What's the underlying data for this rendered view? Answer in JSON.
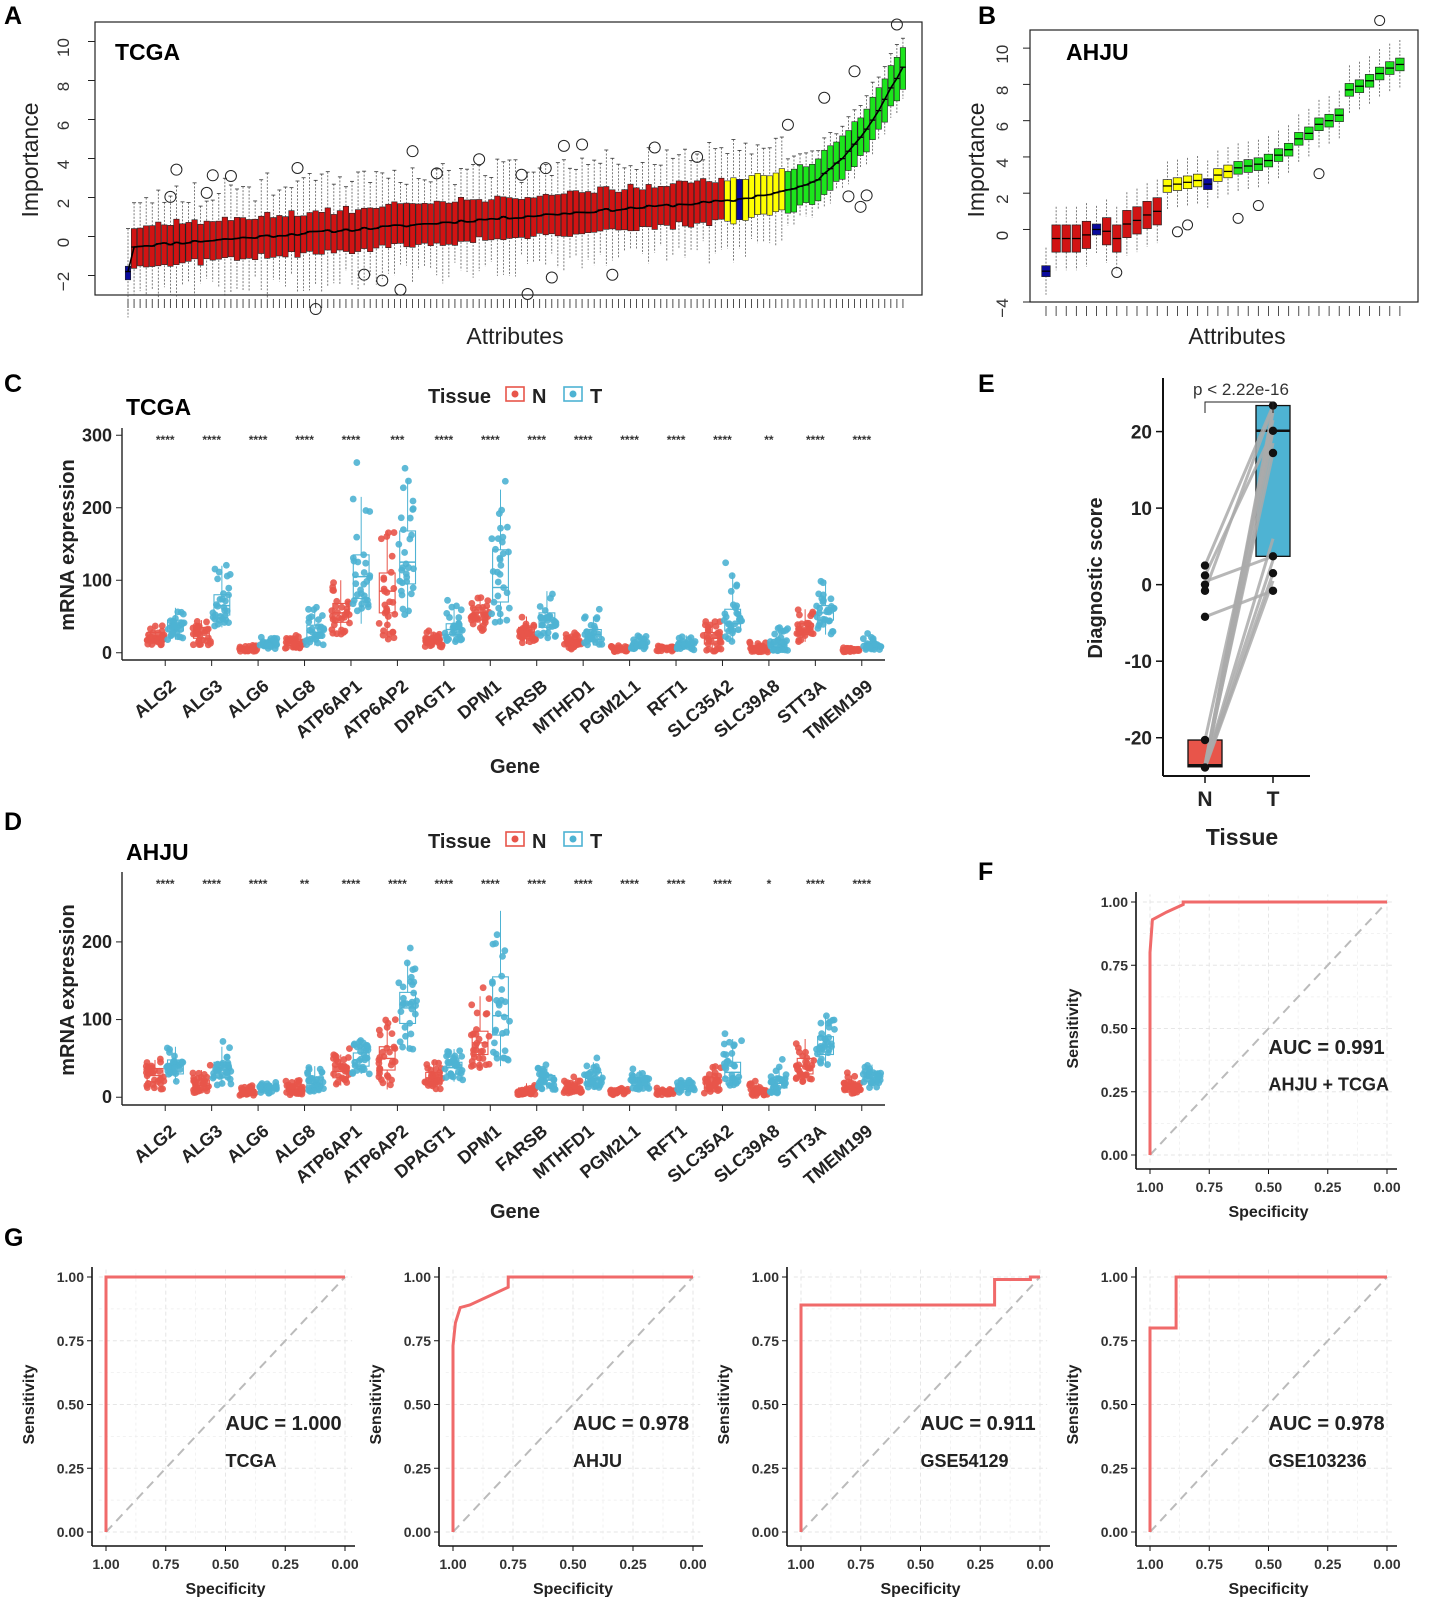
{
  "colors": {
    "normal": "#E8554A",
    "tumor": "#4EB3D3",
    "confirmed": "#1CE51C",
    "tentative": "#FFFF00",
    "rejected": "#D11313",
    "shadow": "#0A0A9E",
    "roc": "#F06A6A",
    "diag": "#BBBBBB"
  },
  "panel_labels": [
    "A",
    "B",
    "C",
    "D",
    "E",
    "F",
    "G"
  ],
  "chart_data": [
    {
      "id": "A",
      "type": "boxplot",
      "title": "TCGA",
      "xlabel": "Attributes",
      "ylabel": "Importance",
      "ylim": [
        -3,
        11
      ],
      "yticks": [
        -2,
        0,
        2,
        4,
        6,
        8,
        10
      ],
      "n_attributes": 129,
      "first_box": {
        "median": -1.8,
        "color": "shadow"
      },
      "groups": [
        {
          "status": "rejected",
          "count": 98,
          "median_start": -0.5,
          "median_end": 1.8
        },
        {
          "status": "tentative",
          "count": 10,
          "median_start": 1.8,
          "median_end": 2.3
        },
        {
          "status": "confirmed",
          "count": 20,
          "median_start": 2.4,
          "median_end": 8.7
        }
      ],
      "shadow_boxes": [
        {
          "index": 101,
          "median": 2.1
        }
      ]
    },
    {
      "id": "B",
      "type": "boxplot",
      "title": "AHJU",
      "xlabel": "Attributes",
      "ylabel": "Importance",
      "ylim": [
        -4,
        11
      ],
      "yticks": [
        -4,
        0,
        2,
        4,
        6,
        8,
        10
      ],
      "n_attributes": 34,
      "medians": [
        -2.3,
        -0.5,
        -0.5,
        -0.5,
        -0.3,
        0.0,
        -0.1,
        -0.5,
        0.3,
        0.5,
        0.8,
        1.0,
        2.4,
        2.5,
        2.6,
        2.7,
        2.5,
        3.0,
        3.2,
        3.4,
        3.5,
        3.6,
        3.8,
        4.1,
        4.4,
        5.0,
        5.3,
        5.8,
        6.0,
        6.3,
        7.7,
        7.9,
        8.2,
        8.6,
        8.9,
        9.1
      ],
      "statuses": [
        "shadow",
        "rejected",
        "rejected",
        "rejected",
        "rejected",
        "shadow",
        "rejected",
        "rejected",
        "rejected",
        "rejected",
        "rejected",
        "rejected",
        "tentative",
        "tentative",
        "tentative",
        "tentative",
        "shadow",
        "tentative",
        "tentative",
        "confirmed",
        "confirmed",
        "confirmed",
        "confirmed",
        "confirmed",
        "confirmed",
        "confirmed",
        "confirmed",
        "confirmed",
        "confirmed",
        "confirmed",
        "confirmed",
        "confirmed",
        "confirmed",
        "confirmed",
        "confirmed",
        "confirmed"
      ]
    },
    {
      "id": "C",
      "type": "boxplot-jitter",
      "title": "TCGA",
      "xlabel": "Gene",
      "ylabel": "mRNA expression",
      "ylim": [
        -10,
        310
      ],
      "yticks": [
        0,
        100,
        200,
        300
      ],
      "legend": {
        "title": "Tissue",
        "entries": [
          "N",
          "T"
        ],
        "position": "top"
      },
      "categories": [
        "ALG2",
        "ALG3",
        "ALG6",
        "ALG8",
        "ATP6AP1",
        "ATP6AP2",
        "DPAGT1",
        "DPM1",
        "FARSB",
        "MTHFD1",
        "PGM2L1",
        "RFT1",
        "SLC35A2",
        "SLC39A8",
        "STT3A",
        "TMEM199"
      ],
      "significance": [
        "****",
        "****",
        "****",
        "****",
        "****",
        "***",
        "****",
        "****",
        "****",
        "****",
        "****",
        "****",
        "****",
        "**",
        "****",
        "****"
      ],
      "series": [
        {
          "name": "N",
          "stats": [
            [
              10,
              17,
              23,
              28,
              38
            ],
            [
              10,
              20,
              27,
              35,
              45
            ],
            [
              2,
              4,
              6,
              7,
              10
            ],
            [
              6,
              10,
              13,
              16,
              22
            ],
            [
              25,
              42,
              55,
              68,
              100
            ],
            [
              18,
              55,
              85,
              110,
              168
            ],
            [
              8,
              12,
              16,
              20,
              28
            ],
            [
              30,
              45,
              55,
              62,
              78
            ],
            [
              12,
              20,
              28,
              35,
              50
            ],
            [
              5,
              10,
              14,
              18,
              26
            ],
            [
              1,
              3,
              4,
              6,
              9
            ],
            [
              2,
              4,
              5,
              7,
              10
            ],
            [
              2,
              12,
              20,
              28,
              45
            ],
            [
              1,
              3,
              5,
              8,
              14
            ],
            [
              15,
              25,
              32,
              40,
              60
            ],
            [
              1,
              3,
              4,
              5,
              7
            ]
          ]
        },
        {
          "name": "T",
          "stats": [
            [
              18,
              30,
              38,
              45,
              62
            ],
            [
              35,
              52,
              65,
              80,
              120
            ],
            [
              5,
              9,
              12,
              15,
              22
            ],
            [
              10,
              20,
              28,
              38,
              60
            ],
            [
              40,
              75,
              105,
              135,
              215
            ],
            [
              50,
              95,
              125,
              168,
              240
            ],
            [
              15,
              25,
              32,
              40,
              65
            ],
            [
              40,
              70,
              90,
              142,
              225
            ],
            [
              20,
              35,
              45,
              55,
              85
            ],
            [
              10,
              18,
              25,
              32,
              50
            ],
            [
              5,
              9,
              12,
              15,
              25
            ],
            [
              4,
              8,
              11,
              15,
              24
            ],
            [
              15,
              30,
              40,
              60,
              110
            ],
            [
              2,
              8,
              12,
              18,
              35
            ],
            [
              25,
              45,
              55,
              65,
              100
            ],
            [
              4,
              7,
              10,
              13,
              22
            ]
          ]
        }
      ]
    },
    {
      "id": "D",
      "type": "boxplot-jitter",
      "title": "AHJU",
      "xlabel": "Gene",
      "ylabel": "mRNA expression",
      "ylim": [
        -10,
        290
      ],
      "yticks": [
        0,
        100,
        200
      ],
      "legend": {
        "title": "Tissue",
        "entries": [
          "N",
          "T"
        ],
        "position": "top"
      },
      "categories": [
        "ALG2",
        "ALG3",
        "ALG6",
        "ALG8",
        "ATP6AP1",
        "ATP6AP2",
        "DPAGT1",
        "DPM1",
        "FARSB",
        "MTHFD1",
        "PGM2L1",
        "RFT1",
        "SLC35A2",
        "SLC39A8",
        "STT3A",
        "TMEM199"
      ],
      "significance": [
        "****",
        "****",
        "****",
        "**",
        "****",
        "****",
        "****",
        "****",
        "****",
        "****",
        "****",
        "****",
        "****",
        "*",
        "****",
        "****"
      ],
      "series": [
        {
          "name": "N",
          "stats": [
            [
              10,
              20,
              28,
              37,
              48
            ],
            [
              5,
              10,
              15,
              22,
              35
            ],
            [
              2,
              5,
              7,
              10,
              14
            ],
            [
              3,
              7,
              10,
              14,
              22
            ],
            [
              15,
              25,
              33,
              40,
              55
            ],
            [
              10,
              35,
              50,
              65,
              100
            ],
            [
              10,
              18,
              25,
              32,
              48
            ],
            [
              35,
              55,
              70,
              85,
              130
            ],
            [
              3,
              6,
              9,
              12,
              18
            ],
            [
              5,
              8,
              11,
              14,
              22
            ],
            [
              3,
              5,
              7,
              9,
              12
            ],
            [
              3,
              5,
              7,
              9,
              12
            ],
            [
              5,
              12,
              18,
              25,
              40
            ],
            [
              2,
              5,
              8,
              12,
              18
            ],
            [
              20,
              30,
              40,
              50,
              75
            ],
            [
              5,
              10,
              14,
              18,
              28
            ]
          ]
        },
        {
          "name": "T",
          "stats": [
            [
              20,
              30,
              40,
              48,
              65
            ],
            [
              15,
              25,
              35,
              45,
              65
            ],
            [
              5,
              9,
              12,
              15,
              20
            ],
            [
              5,
              12,
              18,
              25,
              40
            ],
            [
              30,
              40,
              48,
              57,
              75
            ],
            [
              60,
              95,
              115,
              135,
              175
            ],
            [
              20,
              30,
              38,
              45,
              62
            ],
            [
              40,
              80,
              105,
              155,
              240
            ],
            [
              10,
              17,
              22,
              28,
              38
            ],
            [
              12,
              18,
              24,
              32,
              45
            ],
            [
              10,
              15,
              20,
              25,
              35
            ],
            [
              5,
              10,
              13,
              16,
              22
            ],
            [
              15,
              25,
              32,
              45,
              75
            ],
            [
              5,
              12,
              18,
              25,
              40
            ],
            [
              40,
              55,
              65,
              78,
              105
            ],
            [
              12,
              20,
              25,
              32,
              42
            ]
          ]
        }
      ]
    },
    {
      "id": "E",
      "type": "paired-boxplot",
      "xlabel": "Tissue",
      "ylabel": "Diagnostic score",
      "ylim": [
        -25,
        27
      ],
      "yticks": [
        -20,
        -10,
        0,
        10,
        20
      ],
      "categories": [
        "N",
        "T"
      ],
      "annotation": "p < 2.22e-16",
      "boxes": [
        {
          "name": "N",
          "min": -24.2,
          "q1": -23.8,
          "median": -23.6,
          "q3": -20.3,
          "max": -20.3
        },
        {
          "name": "T",
          "min": -0.8,
          "q1": 3.7,
          "median": 20.1,
          "q3": 23.4,
          "max": 23.4
        }
      ],
      "pairs": [
        [
          2.5,
          23.4
        ],
        [
          1.2,
          20.1
        ],
        [
          -0.8,
          23.2
        ],
        [
          0.4,
          3.7
        ],
        [
          -4.2,
          -0.8
        ],
        [
          -20.3,
          20.1
        ],
        [
          -23.6,
          17.2
        ],
        [
          -23.9,
          1.5
        ],
        [
          -23.5,
          23.0
        ],
        [
          -23.7,
          20.0
        ],
        [
          -23.8,
          22.5
        ],
        [
          -24.0,
          0.5
        ],
        [
          -23.6,
          3.2
        ],
        [
          -23.9,
          18.5
        ],
        [
          -23.5,
          21.5
        ],
        [
          -23.7,
          6.0
        ]
      ],
      "visible_points_N": [
        2.5,
        1.2,
        0.0,
        -0.8,
        -4.2,
        -20.3,
        -23.9
      ],
      "visible_points_T": [
        23.4,
        20.1,
        17.2,
        3.7,
        1.5,
        -0.8
      ]
    },
    {
      "id": "F",
      "type": "roc",
      "xlabel": "Specificity",
      "ylabel": "Sensitivity",
      "auc_text": "AUC = 0.991",
      "dataset": "AHJU + TCGA",
      "xticks": [
        1.0,
        0.75,
        0.5,
        0.25,
        0.0
      ],
      "yticks": [
        0.0,
        0.25,
        0.5,
        0.75,
        1.0
      ],
      "tick_labels_x": [
        "1.00",
        "0.75",
        "0.50",
        "0.25",
        "0.00"
      ],
      "tick_labels_y": [
        "0.00",
        "0.25",
        "0.50",
        "0.75",
        "1.00"
      ],
      "curve": [
        [
          1.0,
          0.0
        ],
        [
          1.0,
          0.8
        ],
        [
          0.99,
          0.93
        ],
        [
          0.93,
          0.96
        ],
        [
          0.86,
          0.99
        ],
        [
          0.86,
          1.0
        ],
        [
          0.0,
          1.0
        ]
      ]
    },
    {
      "id": "G1",
      "type": "roc",
      "xlabel": "Specificity",
      "ylabel": "Sensitivity",
      "auc_text": "AUC = 1.000",
      "dataset": "TCGA",
      "xticks": [
        1.0,
        0.75,
        0.5,
        0.25,
        0.0
      ],
      "yticks": [
        0.0,
        0.25,
        0.5,
        0.75,
        1.0
      ],
      "tick_labels_x": [
        "1.00",
        "0.75",
        "0.50",
        "0.25",
        "0.00"
      ],
      "tick_labels_y": [
        "0.00",
        "0.25",
        "0.50",
        "0.75",
        "1.00"
      ],
      "curve": [
        [
          1.0,
          0.0
        ],
        [
          1.0,
          1.0
        ],
        [
          0.0,
          1.0
        ]
      ]
    },
    {
      "id": "G2",
      "type": "roc",
      "xlabel": "Specificity",
      "ylabel": "Sensitivity",
      "auc_text": "AUC = 0.978",
      "dataset": "AHJU",
      "xticks": [
        1.0,
        0.75,
        0.5,
        0.25,
        0.0
      ],
      "yticks": [
        0.0,
        0.25,
        0.5,
        0.75,
        1.0
      ],
      "tick_labels_x": [
        "1.00",
        "0.75",
        "0.50",
        "0.25",
        "0.00"
      ],
      "tick_labels_y": [
        "0.00",
        "0.25",
        "0.50",
        "0.75",
        "1.00"
      ],
      "curve": [
        [
          1.0,
          0.0
        ],
        [
          1.0,
          0.73
        ],
        [
          0.99,
          0.82
        ],
        [
          0.97,
          0.88
        ],
        [
          0.93,
          0.89
        ],
        [
          0.77,
          0.96
        ],
        [
          0.77,
          1.0
        ],
        [
          0.0,
          1.0
        ]
      ]
    },
    {
      "id": "G3",
      "type": "roc",
      "xlabel": "Specificity",
      "ylabel": "Sensitivity",
      "auc_text": "AUC = 0.911",
      "dataset": "GSE54129",
      "xticks": [
        1.0,
        0.75,
        0.5,
        0.25,
        0.0
      ],
      "yticks": [
        0.0,
        0.25,
        0.5,
        0.75,
        1.0
      ],
      "tick_labels_x": [
        "1.00",
        "0.75",
        "0.50",
        "0.25",
        "0.00"
      ],
      "tick_labels_y": [
        "0.00",
        "0.25",
        "0.50",
        "0.75",
        "1.00"
      ],
      "curve": [
        [
          1.0,
          0.0
        ],
        [
          1.0,
          0.89
        ],
        [
          0.19,
          0.89
        ],
        [
          0.19,
          0.99
        ],
        [
          0.04,
          0.99
        ],
        [
          0.04,
          1.0
        ],
        [
          0.0,
          1.0
        ]
      ]
    },
    {
      "id": "G4",
      "type": "roc",
      "xlabel": "Specificity",
      "ylabel": "Sensitivity",
      "auc_text": "AUC = 0.978",
      "dataset": "GSE103236",
      "xticks": [
        1.0,
        0.75,
        0.5,
        0.25,
        0.0
      ],
      "yticks": [
        0.0,
        0.25,
        0.5,
        0.75,
        1.0
      ],
      "tick_labels_x": [
        "1.00",
        "0.75",
        "0.50",
        "0.25",
        "0.00"
      ],
      "tick_labels_y": [
        "0.00",
        "0.25",
        "0.50",
        "0.75",
        "1.00"
      ],
      "curve": [
        [
          1.0,
          0.0
        ],
        [
          1.0,
          0.8
        ],
        [
          0.89,
          0.8
        ],
        [
          0.89,
          1.0
        ],
        [
          0.0,
          1.0
        ]
      ]
    }
  ]
}
